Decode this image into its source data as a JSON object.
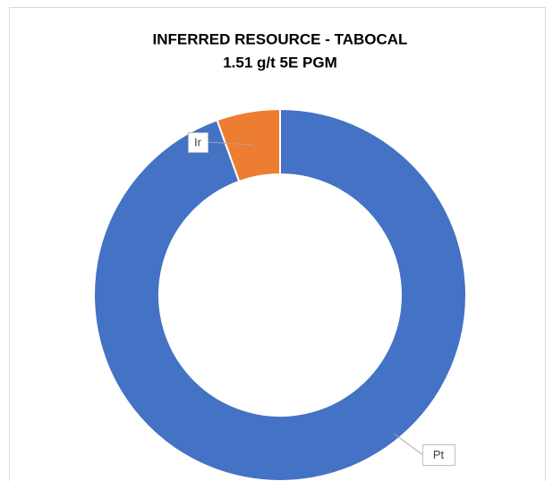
{
  "chart_data": {
    "type": "donut",
    "title": [
      "INFERRED RESOURCE - TABOCAL",
      "1.51 g/t 5E PGM"
    ],
    "categories": [
      "Pt",
      "Ir"
    ],
    "values": [
      94.5,
      5.5
    ],
    "colors": [
      "#4472c4",
      "#ed7d31"
    ]
  }
}
